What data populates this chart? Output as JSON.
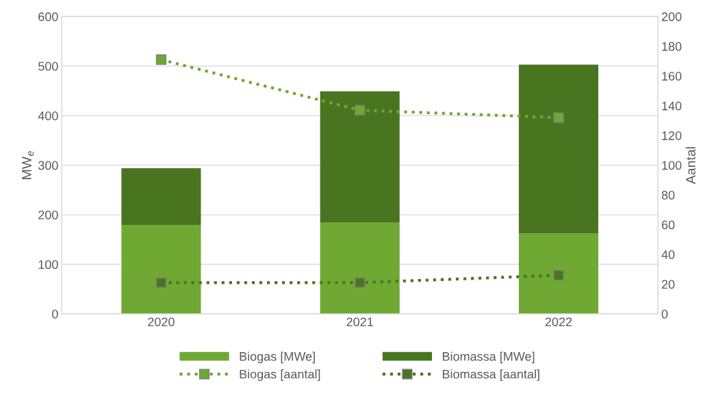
{
  "chart_data": {
    "type": "bar",
    "stacked": true,
    "categories": [
      "2020",
      "2021",
      "2022"
    ],
    "ylabel": "MW$_{e}$",
    "y2label": "Aantal",
    "ylim": [
      0,
      600
    ],
    "yticks": [
      0,
      100,
      200,
      300,
      400,
      500,
      600
    ],
    "y2lim": [
      0,
      200
    ],
    "y2ticks": [
      0,
      20,
      40,
      60,
      80,
      100,
      120,
      140,
      160,
      180,
      200
    ],
    "grid": "y",
    "legend": "bottom",
    "series": [
      {
        "name": "Biogas [MWe]",
        "color": "#6fa832",
        "values": [
          179,
          184,
          162
        ]
      },
      {
        "name": "Biomassa [MWe]",
        "color": "#4a7520",
        "values": [
          115,
          265,
          341
        ]
      },
      {
        "name": "Biogas [aantal]",
        "type": "line",
        "axis": "y2",
        "color": "#6fa832",
        "marker": "square",
        "line_style": "dotted",
        "values": [
          171,
          137,
          132
        ]
      },
      {
        "name": "Biomassa [aantal]",
        "type": "line",
        "axis": "y2",
        "color": "#4a7520",
        "marker": "square",
        "line_style": "dotted",
        "values": [
          21,
          21,
          26
        ]
      }
    ]
  }
}
